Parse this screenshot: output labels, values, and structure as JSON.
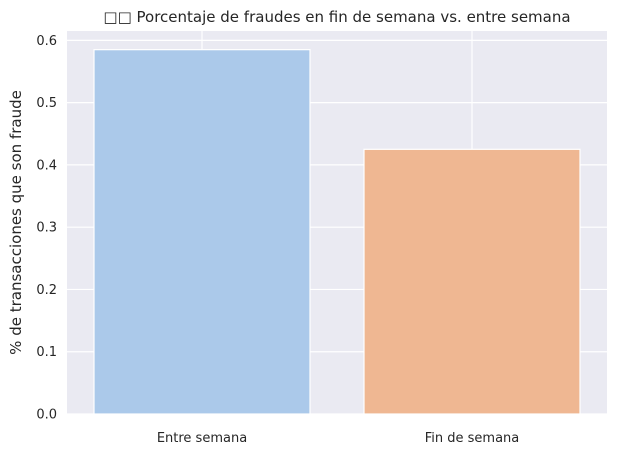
{
  "chart_data": {
    "type": "bar",
    "title": "□□ Porcentaje de fraudes en fin de semana vs. entre semana",
    "xlabel": "",
    "ylabel": "% de transacciones que son fraude",
    "categories": [
      "Entre semana",
      "Fin de semana"
    ],
    "values": [
      0.585,
      0.425
    ],
    "colors": [
      "#abc9ea",
      "#efb792"
    ],
    "ylim": [
      0,
      0.615
    ],
    "yticks": [
      0.0,
      0.1,
      0.2,
      0.3,
      0.4,
      0.5,
      0.6
    ],
    "ytick_labels": [
      "0.0",
      "0.1",
      "0.2",
      "0.3",
      "0.4",
      "0.5",
      "0.6"
    ],
    "grid": true,
    "background": "#eaeaf2"
  }
}
